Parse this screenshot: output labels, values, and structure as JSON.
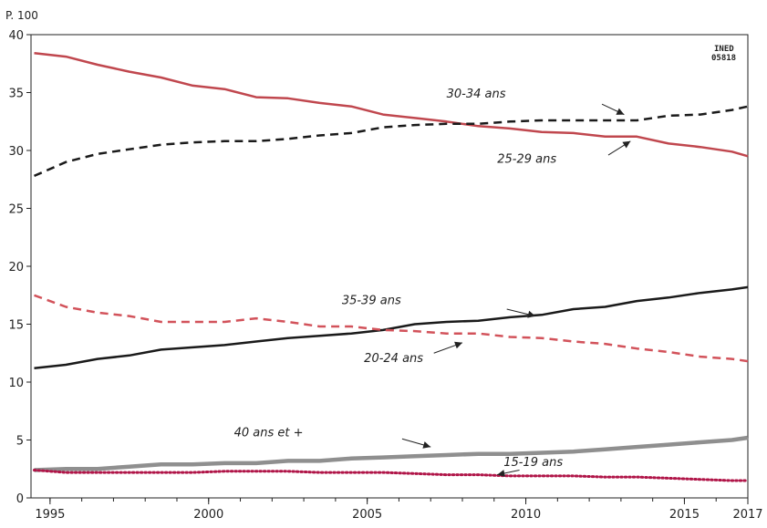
{
  "chart_data": {
    "type": "line",
    "unit_label": "P. 100",
    "source_badge": [
      "INED",
      "05818"
    ],
    "ylim": [
      0,
      40
    ],
    "xlim": [
      1994.4,
      2017
    ],
    "y_ticks": [
      "0",
      "5",
      "10",
      "15",
      "20",
      "25",
      "30",
      "35",
      "40"
    ],
    "x_ticks": [
      "1995",
      "2000",
      "2005",
      "2010",
      "2015",
      "2017"
    ],
    "x": [
      1994.5,
      1995.5,
      1996.5,
      1997.5,
      1998.5,
      1999.5,
      2000.5,
      2001.5,
      2002.5,
      2003.5,
      2004.5,
      2005.5,
      2006.5,
      2007.5,
      2008.5,
      2009.5,
      2010.5,
      2011.5,
      2012.5,
      2013.5,
      2014.5,
      2015.5,
      2016.5,
      2017
    ],
    "series": [
      {
        "name": "25-29 ans",
        "color": "#c0474e",
        "style": "solid",
        "values": [
          38.4,
          38.1,
          37.4,
          36.8,
          36.3,
          35.6,
          35.3,
          34.6,
          34.5,
          34.1,
          33.8,
          33.1,
          32.8,
          32.5,
          32.1,
          31.9,
          31.6,
          31.5,
          31.2,
          31.2,
          30.6,
          30.3,
          29.9,
          29.5
        ]
      },
      {
        "name": "30-34 ans",
        "color": "#1a1a1a",
        "style": "dashed",
        "values": [
          27.8,
          29.0,
          29.7,
          30.1,
          30.5,
          30.7,
          30.8,
          30.8,
          31.0,
          31.3,
          31.5,
          32.0,
          32.2,
          32.3,
          32.3,
          32.5,
          32.6,
          32.6,
          32.6,
          32.6,
          33.0,
          33.1,
          33.5,
          33.8
        ]
      },
      {
        "name": "35-39 ans",
        "color": "#1a1a1a",
        "style": "solid",
        "values": [
          11.2,
          11.5,
          12.0,
          12.3,
          12.8,
          13.0,
          13.2,
          13.5,
          13.8,
          14.0,
          14.2,
          14.5,
          15.0,
          15.2,
          15.3,
          15.6,
          15.8,
          16.3,
          16.5,
          17.0,
          17.3,
          17.7,
          18.0,
          18.2
        ]
      },
      {
        "name": "20-24 ans",
        "color": "#d2525a",
        "style": "dashed",
        "values": [
          17.5,
          16.5,
          16.0,
          15.7,
          15.2,
          15.2,
          15.2,
          15.5,
          15.2,
          14.8,
          14.8,
          14.5,
          14.4,
          14.2,
          14.2,
          13.9,
          13.8,
          13.5,
          13.3,
          12.9,
          12.6,
          12.2,
          12.0,
          11.8
        ]
      },
      {
        "name": "40 ans et +",
        "color": "#8f8f8f",
        "style": "thick",
        "values": [
          2.4,
          2.5,
          2.5,
          2.7,
          2.9,
          2.9,
          3.0,
          3.0,
          3.2,
          3.2,
          3.4,
          3.5,
          3.6,
          3.7,
          3.8,
          3.8,
          3.9,
          4.0,
          4.2,
          4.4,
          4.6,
          4.8,
          5.0,
          5.2
        ]
      },
      {
        "name": "15-19 ans",
        "color": "#b01548",
        "style": "dotted",
        "values": [
          2.4,
          2.2,
          2.2,
          2.2,
          2.2,
          2.2,
          2.3,
          2.3,
          2.3,
          2.2,
          2.2,
          2.2,
          2.1,
          2.0,
          2.0,
          1.9,
          1.9,
          1.9,
          1.8,
          1.8,
          1.7,
          1.6,
          1.5,
          1.5
        ]
      }
    ],
    "labels": [
      {
        "text": "30-34 ans"
      },
      {
        "text": "25-29 ans"
      },
      {
        "text": "35-39 ans"
      },
      {
        "text": "20-24 ans"
      },
      {
        "text": "40 ans et +"
      },
      {
        "text": "15-19 ans"
      }
    ]
  }
}
